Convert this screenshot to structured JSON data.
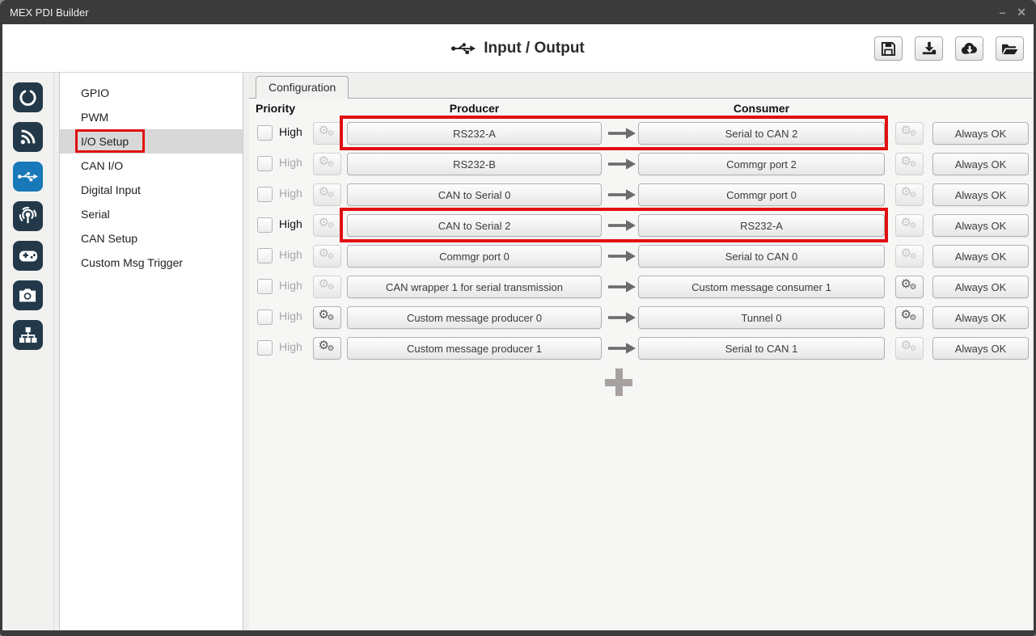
{
  "window": {
    "title": "MEX PDI Builder",
    "controls": {
      "minimize": "–",
      "close": "✕"
    }
  },
  "header": {
    "title": "Input / Output",
    "title_icon": "usb-icon",
    "toolbar": [
      {
        "icon": "save-icon"
      },
      {
        "icon": "download-icon"
      },
      {
        "icon": "cloud-download-icon"
      },
      {
        "icon": "open-folder-icon"
      }
    ]
  },
  "sidebar": {
    "selected_index": 2,
    "items": [
      {
        "icon": "power-icon",
        "selected": false
      },
      {
        "icon": "rss-icon",
        "selected": false
      },
      {
        "icon": "usb-icon",
        "selected": true
      },
      {
        "icon": "podcast-icon",
        "selected": false
      },
      {
        "icon": "gamepad-icon",
        "selected": false
      },
      {
        "icon": "camera-icon",
        "selected": false
      },
      {
        "icon": "network-icon",
        "selected": false
      }
    ]
  },
  "menu": {
    "items": [
      {
        "label": "GPIO",
        "selected": false,
        "annotated": false
      },
      {
        "label": "PWM",
        "selected": false,
        "annotated": false
      },
      {
        "label": "I/O Setup",
        "selected": true,
        "annotated": true
      },
      {
        "label": "CAN I/O",
        "selected": false,
        "annotated": false
      },
      {
        "label": "Digital Input",
        "selected": false,
        "annotated": false
      },
      {
        "label": "Serial",
        "selected": false,
        "annotated": false
      },
      {
        "label": "CAN Setup",
        "selected": false,
        "annotated": false
      },
      {
        "label": "Custom Msg Trigger",
        "selected": false,
        "annotated": false
      }
    ]
  },
  "config": {
    "tab_label": "Configuration",
    "columns": {
      "priority": "Priority",
      "producer": "Producer",
      "consumer": "Consumer"
    },
    "high_label": "High",
    "validation_label": "Always OK",
    "add_icon": "plus-icon",
    "annotation_color": "#e10e11",
    "rows": [
      {
        "high_checked": false,
        "high_emphasis": true,
        "producer_gear_enabled": false,
        "producer": "RS232-A",
        "consumer": "Serial to CAN 2",
        "consumer_gear_enabled": false,
        "validation": "Always OK",
        "annotated": true
      },
      {
        "high_checked": false,
        "high_emphasis": false,
        "producer_gear_enabled": false,
        "producer": "RS232-B",
        "consumer": "Commgr port 2",
        "consumer_gear_enabled": false,
        "validation": "Always OK",
        "annotated": false
      },
      {
        "high_checked": false,
        "high_emphasis": false,
        "producer_gear_enabled": false,
        "producer": "CAN to Serial 0",
        "consumer": "Commgr port 0",
        "consumer_gear_enabled": false,
        "validation": "Always OK",
        "annotated": false
      },
      {
        "high_checked": false,
        "high_emphasis": true,
        "producer_gear_enabled": false,
        "producer": "CAN to Serial 2",
        "consumer": "RS232-A",
        "consumer_gear_enabled": false,
        "validation": "Always OK",
        "annotated": true
      },
      {
        "high_checked": false,
        "high_emphasis": false,
        "producer_gear_enabled": false,
        "producer": "Commgr port 0",
        "consumer": "Serial to CAN 0",
        "consumer_gear_enabled": false,
        "validation": "Always OK",
        "annotated": false
      },
      {
        "high_checked": false,
        "high_emphasis": false,
        "producer_gear_enabled": false,
        "producer": "CAN wrapper 1 for serial transmission",
        "consumer": "Custom message consumer 1",
        "consumer_gear_enabled": true,
        "validation": "Always OK",
        "annotated": false
      },
      {
        "high_checked": false,
        "high_emphasis": false,
        "producer_gear_enabled": true,
        "producer": "Custom message producer 0",
        "consumer": "Tunnel 0",
        "consumer_gear_enabled": true,
        "validation": "Always OK",
        "annotated": false
      },
      {
        "high_checked": false,
        "high_emphasis": false,
        "producer_gear_enabled": true,
        "producer": "Custom message producer 1",
        "consumer": "Serial to CAN 1",
        "consumer_gear_enabled": false,
        "validation": "Always OK",
        "annotated": false
      }
    ]
  },
  "colors": {
    "titlebar": "#3b3b3b",
    "sidebar_tile": "#233949",
    "sidebar_tile_selected": "#1878b8",
    "menu_selected_bg": "#d8d8d8",
    "annotation_red": "#e10e11",
    "pane_bg": "#f6f6f5"
  }
}
